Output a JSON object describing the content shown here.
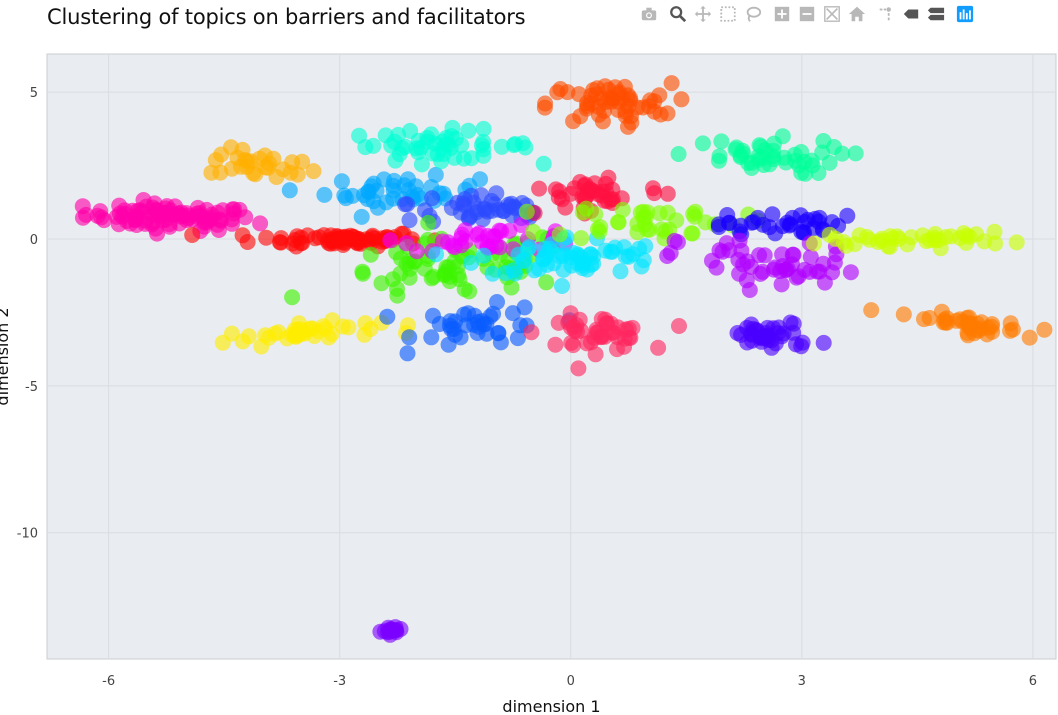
{
  "chart_data": {
    "type": "scatter",
    "title": "Clustering of topics on barriers and facilitators",
    "xlabel": "dimension 1",
    "ylabel": "dimension 2",
    "xlim": [
      -6.8,
      6.3
    ],
    "ylim": [
      -14.3,
      6.3
    ],
    "xticks": [
      -6,
      -3,
      0,
      3,
      6
    ],
    "yticks": [
      5,
      0,
      -5,
      -10
    ],
    "grid": true,
    "legend": "none",
    "plot_background": "#e9ecf0",
    "clusters": [
      {
        "color": "#ff00aa",
        "cx": -5.2,
        "cy": 0.75,
        "sx": 0.55,
        "sy": 0.22,
        "slope": -0.08,
        "n": 90
      },
      {
        "color": "#ffb000",
        "cx": -4.0,
        "cy": 2.5,
        "sx": 0.35,
        "sy": 0.25,
        "slope": -0.2,
        "n": 28
      },
      {
        "color": "#ff0a0a",
        "cx": -3.0,
        "cy": 0.0,
        "sx": 0.55,
        "sy": 0.12,
        "slope": 0.0,
        "n": 70
      },
      {
        "color": "#ffee00",
        "cx": -3.5,
        "cy": -3.2,
        "sx": 0.5,
        "sy": 0.15,
        "slope": 0.22,
        "n": 40
      },
      {
        "color": "#00a8ff",
        "cx": -2.2,
        "cy": 1.6,
        "sx": 0.5,
        "sy": 0.25,
        "slope": 0.0,
        "n": 40
      },
      {
        "color": "#00ffd5",
        "cx": -1.7,
        "cy": 3.2,
        "sx": 0.6,
        "sy": 0.25,
        "slope": 0.0,
        "n": 50
      },
      {
        "color": "#2b4bff",
        "cx": -1.1,
        "cy": 1.0,
        "sx": 0.5,
        "sy": 0.3,
        "slope": -0.2,
        "n": 45
      },
      {
        "color": "#3ef500",
        "cx": -1.5,
        "cy": -1.0,
        "sx": 0.8,
        "sy": 0.5,
        "slope": 0.25,
        "n": 70
      },
      {
        "color": "#0a5cff",
        "cx": -1.1,
        "cy": -3.0,
        "sx": 0.45,
        "sy": 0.35,
        "slope": 0.0,
        "n": 38
      },
      {
        "color": "#f000ff",
        "cx": -1.0,
        "cy": 0.0,
        "sx": 0.6,
        "sy": 0.2,
        "slope": 0.0,
        "n": 35
      },
      {
        "color": "#ff2660",
        "cx": 0.3,
        "cy": -3.2,
        "sx": 0.35,
        "sy": 0.3,
        "slope": 0.0,
        "n": 45
      },
      {
        "color": "#ff4d00",
        "cx": 0.5,
        "cy": 4.6,
        "sx": 0.4,
        "sy": 0.35,
        "slope": 0.0,
        "n": 55
      },
      {
        "color": "#ff1040",
        "cx": 0.3,
        "cy": 1.5,
        "sx": 0.45,
        "sy": 0.4,
        "slope": 0.3,
        "n": 40
      },
      {
        "color": "#00e5ff",
        "cx": 0.0,
        "cy": -0.6,
        "sx": 0.6,
        "sy": 0.35,
        "slope": 0.0,
        "n": 60
      },
      {
        "color": "#7fff00",
        "cx": 1.0,
        "cy": 0.6,
        "sx": 0.6,
        "sy": 0.3,
        "slope": 0.0,
        "n": 40
      },
      {
        "color": "#00ff9a",
        "cx": 2.4,
        "cy": 2.8,
        "sx": 0.55,
        "sy": 0.3,
        "slope": 0.0,
        "n": 45
      },
      {
        "color": "#1a00ff",
        "cx": 2.7,
        "cy": 0.5,
        "sx": 0.4,
        "sy": 0.2,
        "slope": 0.1,
        "n": 35
      },
      {
        "color": "#b000ff",
        "cx": 2.6,
        "cy": -0.9,
        "sx": 0.6,
        "sy": 0.4,
        "slope": -0.2,
        "n": 50
      },
      {
        "color": "#4b00ff",
        "cx": 2.6,
        "cy": -3.3,
        "sx": 0.3,
        "sy": 0.25,
        "slope": 0.0,
        "n": 38
      },
      {
        "color": "#c8ff00",
        "cx": 4.5,
        "cy": 0.0,
        "sx": 0.6,
        "sy": 0.12,
        "slope": 0.0,
        "n": 40
      },
      {
        "color": "#ff7a00",
        "cx": 5.1,
        "cy": -2.9,
        "sx": 0.4,
        "sy": 0.15,
        "slope": -0.35,
        "n": 40
      },
      {
        "color": "#7a00ff",
        "cx": -2.3,
        "cy": -13.3,
        "sx": 0.1,
        "sy": 0.05,
        "slope": 0.4,
        "n": 14
      }
    ]
  }
}
